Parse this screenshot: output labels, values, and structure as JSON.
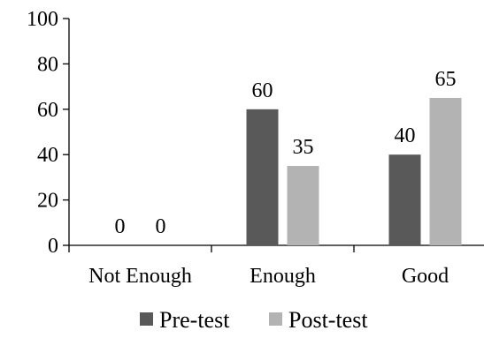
{
  "chart_data": {
    "type": "bar",
    "categories": [
      "Not Enough",
      "Enough",
      "Good"
    ],
    "series": [
      {
        "name": "Pre-test",
        "values": [
          0,
          60,
          40
        ],
        "color": "#595959"
      },
      {
        "name": "Post-test",
        "values": [
          0,
          35,
          65
        ],
        "color": "#b3b3b3"
      }
    ],
    "data_labels": [
      [
        "0",
        "60",
        "40"
      ],
      [
        "0",
        "35",
        "65"
      ]
    ],
    "yticks": [
      "0",
      "20",
      "40",
      "60",
      "80",
      "100"
    ],
    "ylim": [
      0,
      100
    ],
    "grid": false,
    "legend_position": "bottom"
  }
}
